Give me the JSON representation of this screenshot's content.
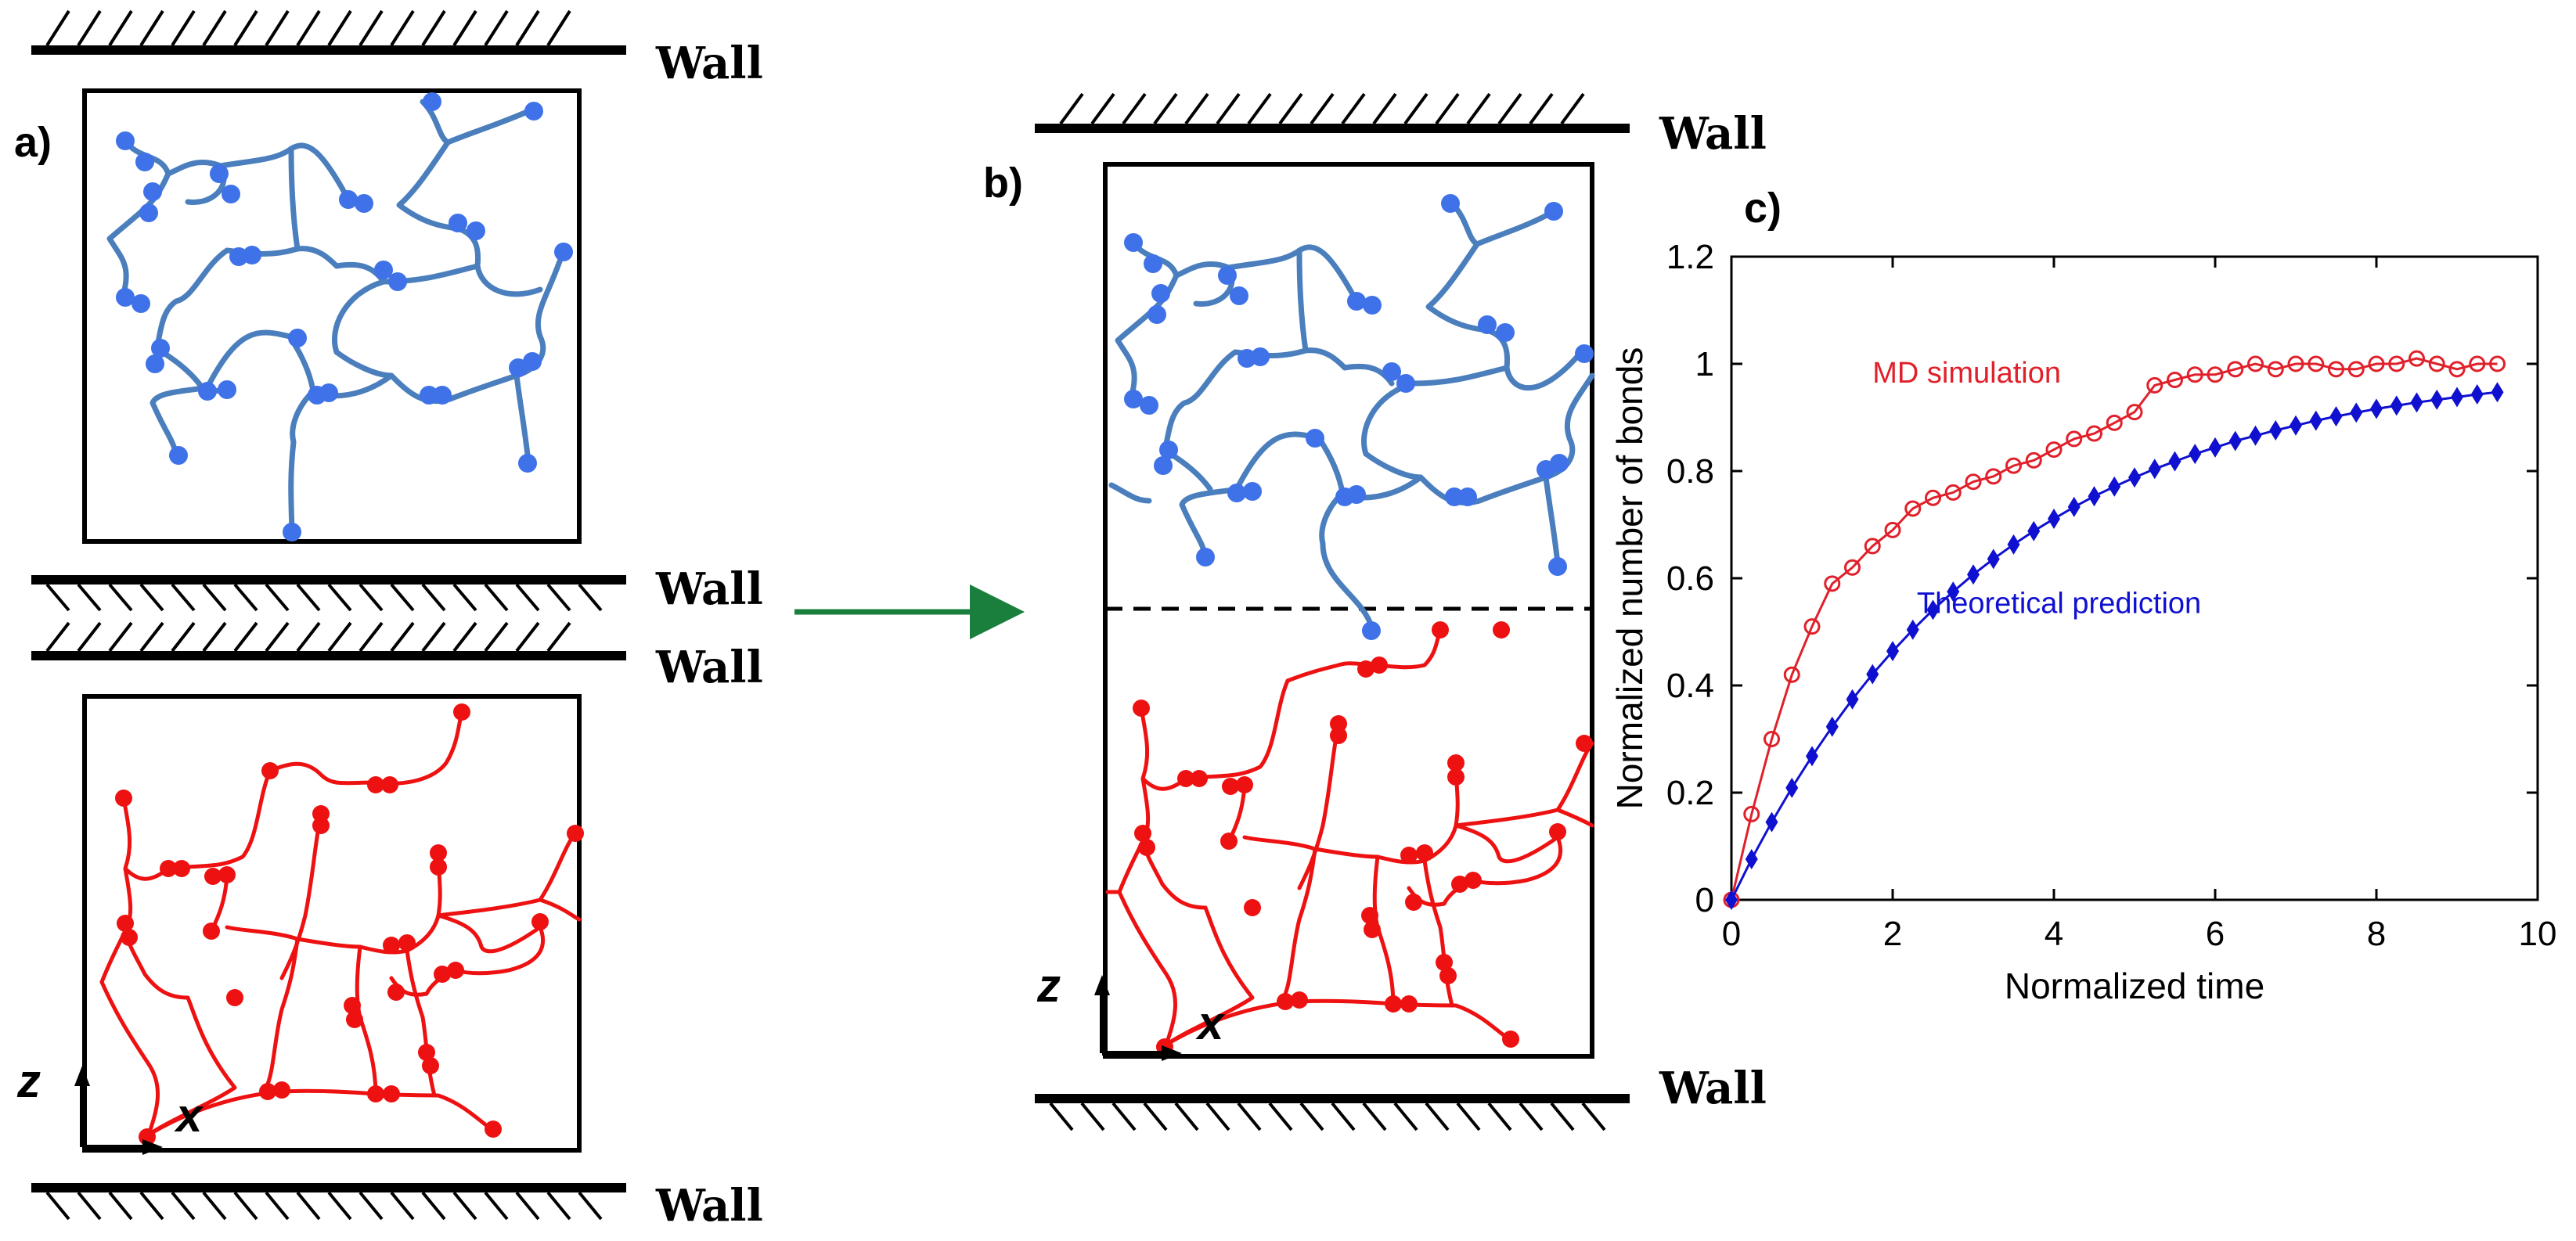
{
  "walls": {
    "label": "Wall",
    "a_top": "Wall",
    "a_mid_1": "Wall",
    "a_mid_2": "Wall",
    "a_bottom": "Wall",
    "b_top": "Wall",
    "b_bottom": "Wall"
  },
  "panels": {
    "a": "a)",
    "b": "b)",
    "c": "c)"
  },
  "axes": {
    "z": "z",
    "x": "x"
  },
  "colors": {
    "top_network": "#4a7ebd",
    "bottom_network": "#ee1111",
    "arrow": "#1a7f3c",
    "md_series": "#e0202a",
    "theory_series": "#1010d0"
  },
  "chart_data": {
    "type": "line",
    "title": "",
    "xlabel": "Normalized time",
    "ylabel": "Normalized number of bonds",
    "xlim": [
      0,
      10
    ],
    "ylim": [
      0,
      1.2
    ],
    "xticks": [
      "0",
      "2",
      "4",
      "6",
      "8",
      "10"
    ],
    "yticks": [
      "0",
      "0.2",
      "0.4",
      "0.6",
      "0.8",
      "1",
      "1.2"
    ],
    "series": [
      {
        "name": "MD simulation",
        "marker": "open-circle",
        "color": "#e0202a",
        "x": [
          0,
          0.25,
          0.5,
          0.75,
          1.0,
          1.25,
          1.5,
          1.75,
          2.0,
          2.25,
          2.5,
          2.75,
          3.0,
          3.25,
          3.5,
          3.75,
          4.0,
          4.25,
          4.5,
          4.75,
          5.0,
          5.25,
          5.5,
          5.75,
          6.0,
          6.25,
          6.5,
          6.75,
          7.0,
          7.25,
          7.5,
          7.75,
          8.0,
          8.25,
          8.5,
          8.75,
          9.0,
          9.25,
          9.5
        ],
        "y": [
          0,
          0.16,
          0.3,
          0.42,
          0.51,
          0.59,
          0.62,
          0.66,
          0.69,
          0.73,
          0.75,
          0.76,
          0.78,
          0.79,
          0.81,
          0.82,
          0.84,
          0.86,
          0.87,
          0.89,
          0.91,
          0.96,
          0.97,
          0.98,
          0.98,
          0.99,
          1.0,
          0.99,
          1.0,
          1.0,
          0.99,
          0.99,
          1.0,
          1.0,
          1.01,
          1.0,
          0.99,
          1.0,
          1.0
        ]
      },
      {
        "name": "Theoretical prediction",
        "marker": "filled-diamond",
        "color": "#1010d0",
        "x": [
          0,
          0.25,
          0.5,
          0.75,
          1.0,
          1.25,
          1.5,
          1.75,
          2.0,
          2.25,
          2.5,
          2.75,
          3.0,
          3.25,
          3.5,
          3.75,
          4.0,
          4.25,
          4.5,
          4.75,
          5.0,
          5.25,
          5.5,
          5.75,
          6.0,
          6.25,
          6.5,
          6.75,
          7.0,
          7.25,
          7.5,
          7.75,
          8.0,
          8.25,
          8.5,
          8.75,
          9.0,
          9.25,
          9.5
        ],
        "y": [
          0,
          0.076,
          0.145,
          0.209,
          0.268,
          0.323,
          0.374,
          0.421,
          0.464,
          0.504,
          0.541,
          0.575,
          0.607,
          0.636,
          0.663,
          0.688,
          0.711,
          0.733,
          0.753,
          0.771,
          0.788,
          0.804,
          0.818,
          0.832,
          0.844,
          0.856,
          0.866,
          0.876,
          0.885,
          0.894,
          0.902,
          0.909,
          0.916,
          0.922,
          0.928,
          0.933,
          0.938,
          0.943,
          0.947
        ]
      }
    ],
    "annotations": [
      "MD simulation",
      "Theoretical prediction"
    ]
  }
}
